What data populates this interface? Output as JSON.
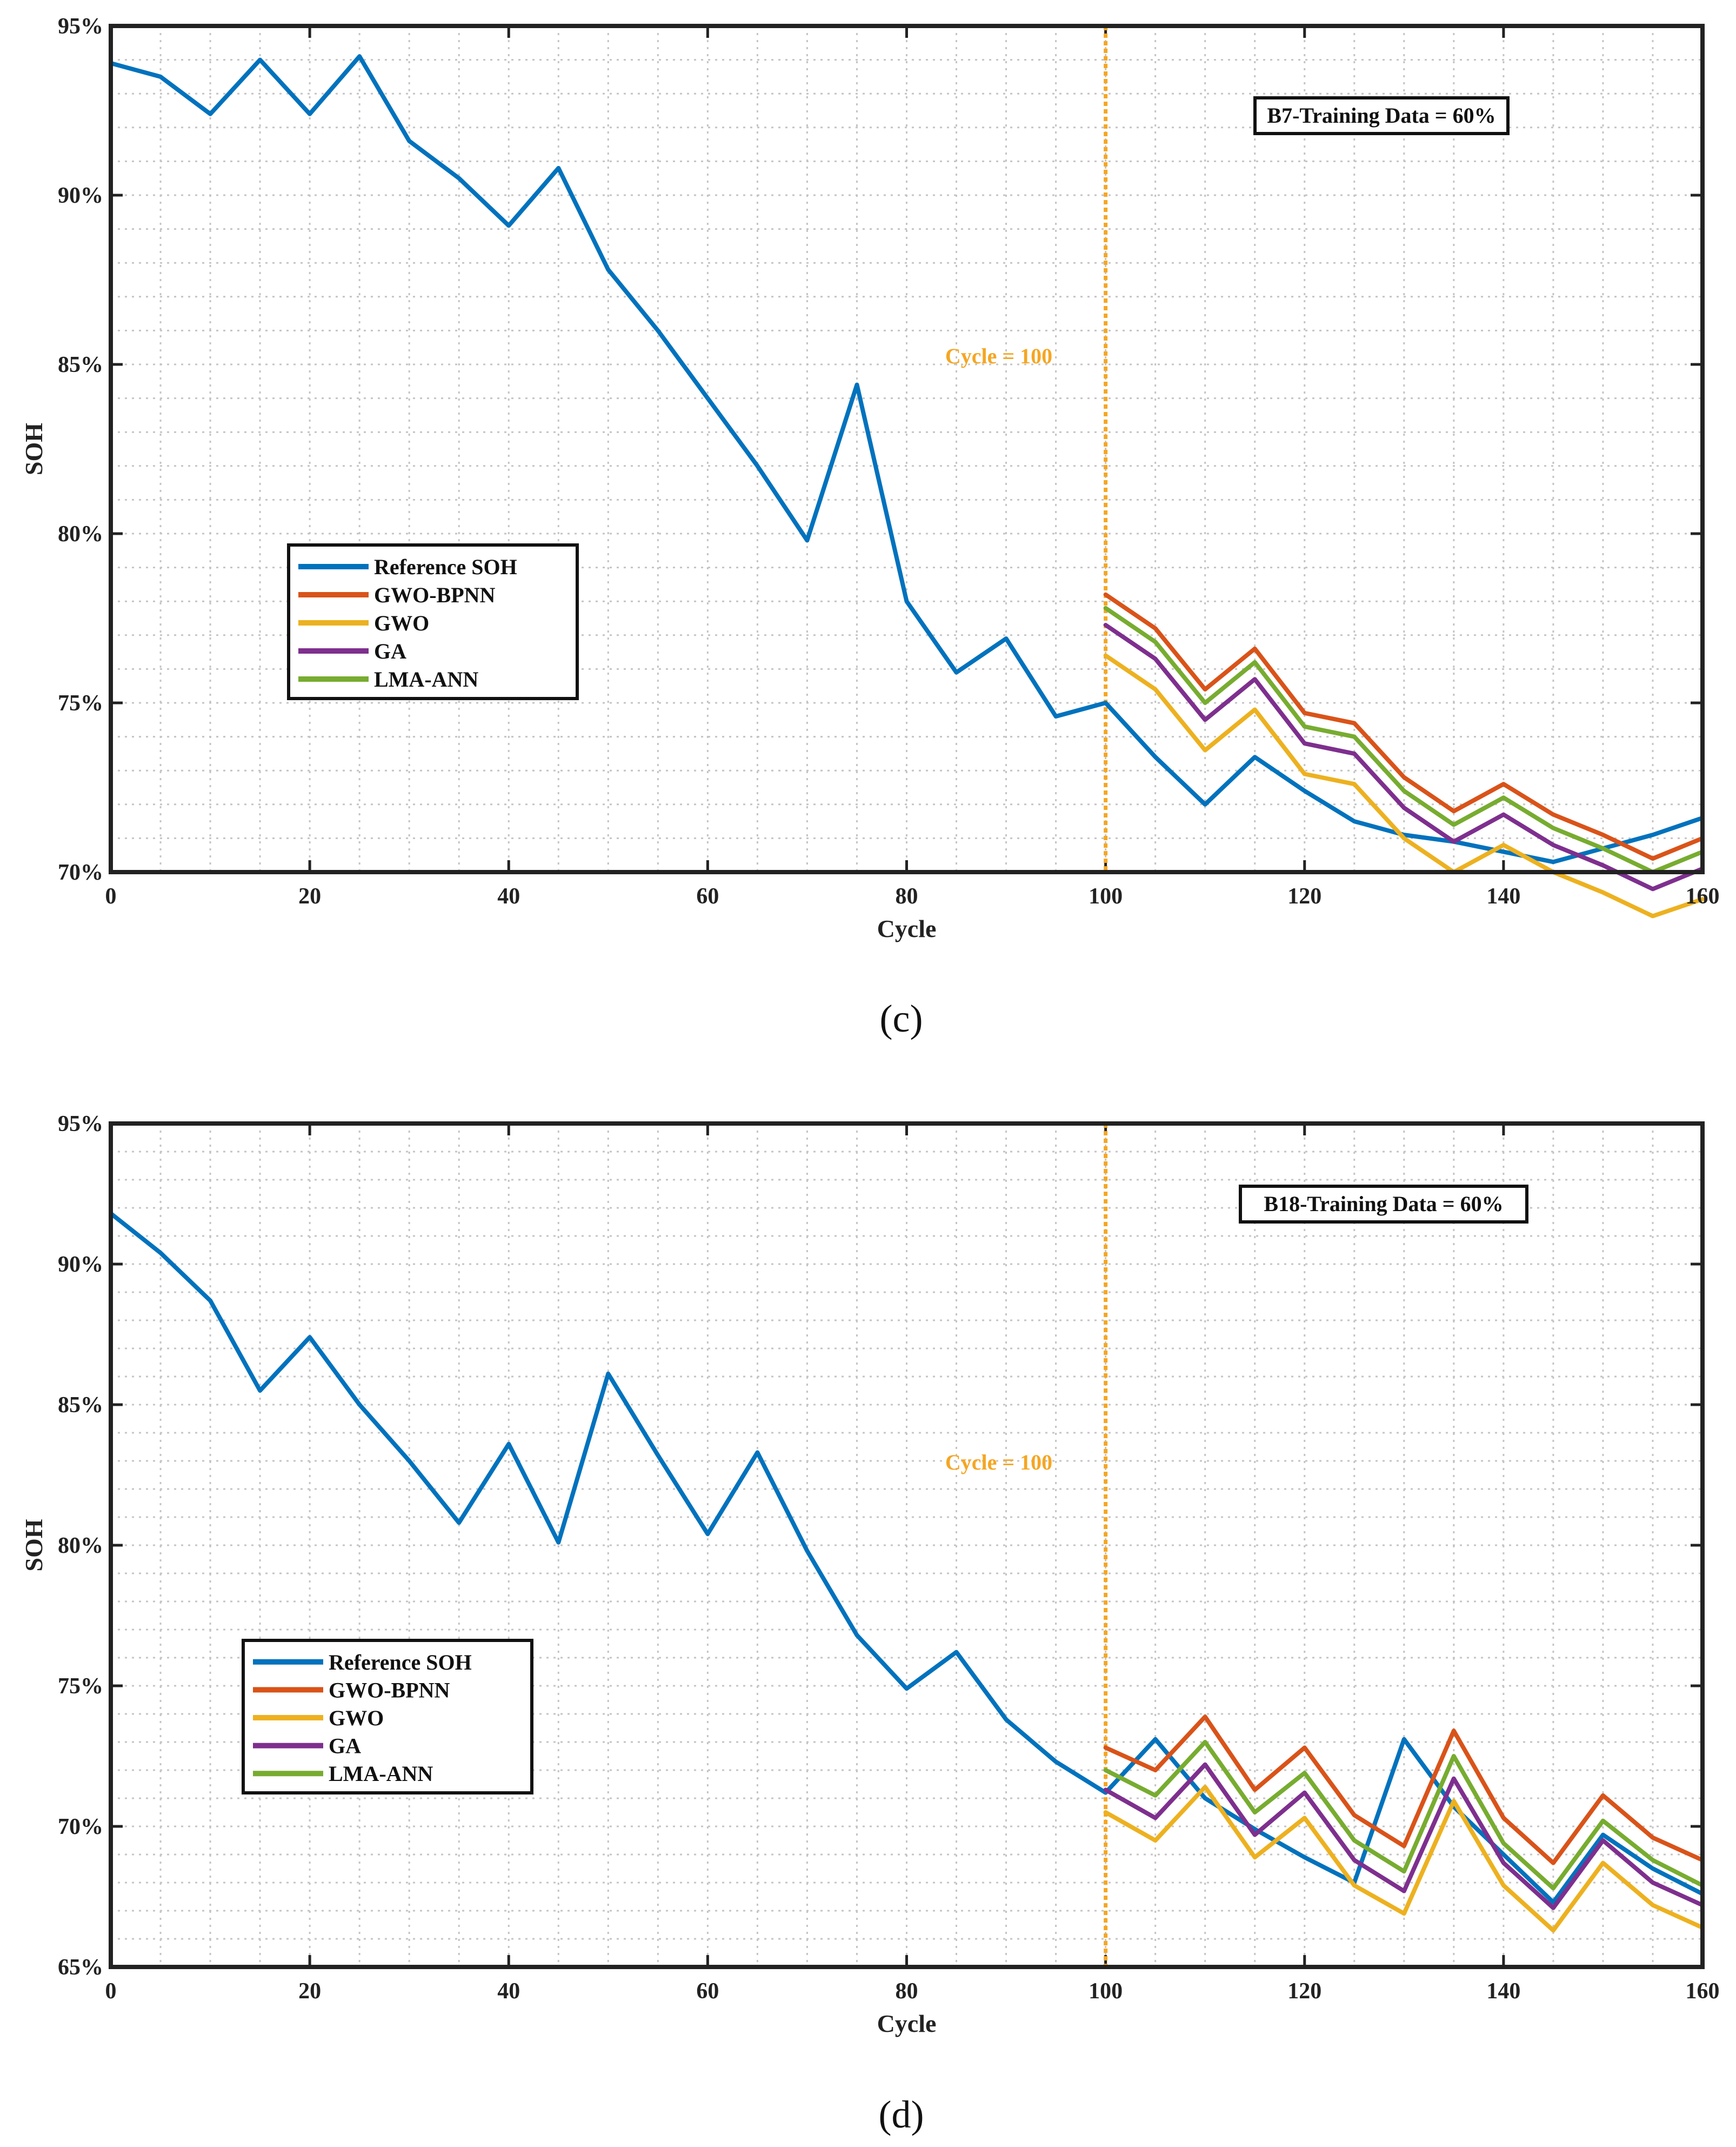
{
  "chart_data": [
    {
      "type": "line",
      "panel_label": "(c)",
      "annotation": "B7-Training Data = 60%",
      "divider": {
        "x": 100,
        "label": "Cycle = 100"
      },
      "xlabel": "Cycle",
      "ylabel": "SOH",
      "xlim": [
        0,
        160
      ],
      "ylim": [
        70,
        95
      ],
      "xticks": [
        0,
        20,
        40,
        60,
        80,
        100,
        120,
        140,
        160
      ],
      "xtick_labels": [
        "0",
        "20",
        "40",
        "60",
        "80",
        "100",
        "120",
        "140",
        "160"
      ],
      "yticks": [
        70,
        75,
        80,
        85,
        90,
        95
      ],
      "ytick_labels": [
        "70%",
        "75%",
        "80%",
        "85%",
        "90%",
        "95%"
      ],
      "grid": true,
      "legend_position": "center-left",
      "series": [
        {
          "name": "Reference SOH",
          "color": "#0072BD",
          "x": [
            0,
            5,
            10,
            15,
            20,
            25,
            30,
            35,
            40,
            45,
            50,
            55,
            60,
            65,
            70,
            75,
            80,
            85,
            90,
            95,
            100,
            105,
            110,
            115,
            120,
            125,
            130,
            135,
            140,
            145,
            150,
            155,
            160
          ],
          "values": [
            93.9,
            93.5,
            92.4,
            94.0,
            92.4,
            94.1,
            91.6,
            90.5,
            89.1,
            90.8,
            87.8,
            86.0,
            84.0,
            82.0,
            79.8,
            84.4,
            78.0,
            75.9,
            76.9,
            74.6,
            75.0,
            73.4,
            72.0,
            73.4,
            72.4,
            71.5,
            71.1,
            70.9,
            70.6,
            70.3,
            70.7,
            71.1,
            71.6
          ]
        },
        {
          "name": "GWO-BPNN",
          "color": "#D95319",
          "x": [
            100,
            105,
            110,
            115,
            120,
            125,
            130,
            135,
            140,
            145,
            150,
            155,
            160
          ],
          "values": [
            78.2,
            77.2,
            75.4,
            76.6,
            74.7,
            74.4,
            72.8,
            71.8,
            72.6,
            71.7,
            71.1,
            70.4,
            71.0
          ]
        },
        {
          "name": "GWO",
          "color": "#EDB120",
          "x": [
            100,
            105,
            110,
            115,
            120,
            125,
            130,
            135,
            140,
            145,
            150,
            155,
            160
          ],
          "values": [
            76.4,
            75.4,
            73.6,
            74.8,
            72.9,
            72.6,
            71.0,
            70.0,
            70.8,
            70.0,
            69.4,
            68.7,
            69.2
          ]
        },
        {
          "name": "GA",
          "color": "#7E2F8E",
          "x": [
            100,
            105,
            110,
            115,
            120,
            125,
            130,
            135,
            140,
            145,
            150,
            155,
            160
          ],
          "values": [
            77.3,
            76.3,
            74.5,
            75.7,
            73.8,
            73.5,
            71.9,
            70.9,
            71.7,
            70.8,
            70.2,
            69.5,
            70.1
          ]
        },
        {
          "name": "LMA-ANN",
          "color": "#77AC30",
          "x": [
            100,
            105,
            110,
            115,
            120,
            125,
            130,
            135,
            140,
            145,
            150,
            155,
            160
          ],
          "values": [
            77.8,
            76.8,
            75.0,
            76.2,
            74.3,
            74.0,
            72.4,
            71.4,
            72.2,
            71.3,
            70.7,
            70.0,
            70.6
          ]
        }
      ]
    },
    {
      "type": "line",
      "panel_label": "(d)",
      "annotation": "B18-Training Data = 60%",
      "divider": {
        "x": 100,
        "label": "Cycle = 100"
      },
      "xlabel": "Cycle",
      "ylabel": "SOH",
      "xlim": [
        0,
        160
      ],
      "ylim": [
        65,
        95
      ],
      "xticks": [
        0,
        20,
        40,
        60,
        80,
        100,
        120,
        140,
        160
      ],
      "xtick_labels": [
        "0",
        "20",
        "40",
        "60",
        "80",
        "100",
        "120",
        "140",
        "160"
      ],
      "yticks": [
        65,
        70,
        75,
        80,
        85,
        90,
        95
      ],
      "ytick_labels": [
        "65%",
        "70%",
        "75%",
        "80%",
        "85%",
        "90%",
        "95%"
      ],
      "grid": true,
      "legend_position": "bottom-left",
      "series": [
        {
          "name": "Reference SOH",
          "color": "#0072BD",
          "x": [
            0,
            5,
            10,
            15,
            20,
            25,
            30,
            35,
            40,
            45,
            50,
            55,
            60,
            65,
            70,
            75,
            80,
            85,
            90,
            95,
            100,
            105,
            110,
            115,
            120,
            125,
            130,
            135,
            140,
            145,
            150,
            155,
            160
          ],
          "values": [
            91.8,
            90.4,
            88.7,
            85.5,
            87.4,
            85.0,
            83.0,
            80.8,
            83.6,
            80.1,
            86.1,
            83.2,
            80.4,
            83.3,
            79.8,
            76.8,
            74.9,
            76.2,
            73.8,
            72.3,
            71.2,
            73.1,
            71.0,
            69.9,
            68.9,
            68.0,
            73.1,
            70.7,
            69.0,
            67.3,
            69.7,
            68.5,
            67.6
          ]
        },
        {
          "name": "GWO-BPNN",
          "color": "#D95319",
          "x": [
            100,
            105,
            110,
            115,
            120,
            125,
            130,
            135,
            140,
            145,
            150,
            155,
            160
          ],
          "values": [
            72.8,
            72.0,
            73.9,
            71.3,
            72.8,
            70.4,
            69.3,
            73.4,
            70.3,
            68.7,
            71.1,
            69.6,
            68.8
          ]
        },
        {
          "name": "GWO",
          "color": "#EDB120",
          "x": [
            100,
            105,
            110,
            115,
            120,
            125,
            130,
            135,
            140,
            145,
            150,
            155,
            160
          ],
          "values": [
            70.5,
            69.5,
            71.4,
            68.9,
            70.3,
            67.9,
            66.9,
            70.9,
            67.9,
            66.3,
            68.7,
            67.2,
            66.4
          ]
        },
        {
          "name": "GA",
          "color": "#7E2F8E",
          "x": [
            100,
            105,
            110,
            115,
            120,
            125,
            130,
            135,
            140,
            145,
            150,
            155,
            160
          ],
          "values": [
            71.3,
            70.3,
            72.2,
            69.7,
            71.2,
            68.8,
            67.7,
            71.7,
            68.7,
            67.1,
            69.5,
            68.0,
            67.2
          ]
        },
        {
          "name": "LMA-ANN",
          "color": "#77AC30",
          "x": [
            100,
            105,
            110,
            115,
            120,
            125,
            130,
            135,
            140,
            145,
            150,
            155,
            160
          ],
          "values": [
            72.0,
            71.1,
            73.0,
            70.5,
            71.9,
            69.5,
            68.4,
            72.5,
            69.4,
            67.8,
            70.2,
            68.8,
            67.9
          ]
        }
      ]
    }
  ]
}
